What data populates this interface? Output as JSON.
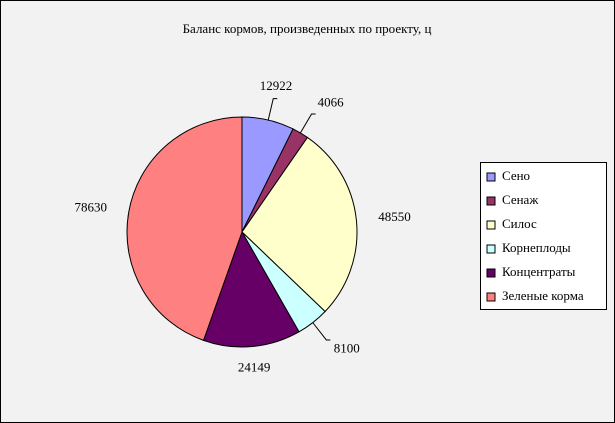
{
  "chart_data": {
    "type": "pie",
    "title": "Баланс кормов, произведенных по проекту, ц",
    "categories": [
      "Сено",
      "Сенаж",
      "Силос",
      "Корнеплоды",
      "Концентраты",
      "Зеленые корма"
    ],
    "values": [
      12922,
      4066,
      48550,
      8100,
      24149,
      78630
    ],
    "colors": [
      "#9999ff",
      "#993366",
      "#ffffcc",
      "#ccffff",
      "#660066",
      "#ff8080"
    ],
    "legend": "right"
  }
}
